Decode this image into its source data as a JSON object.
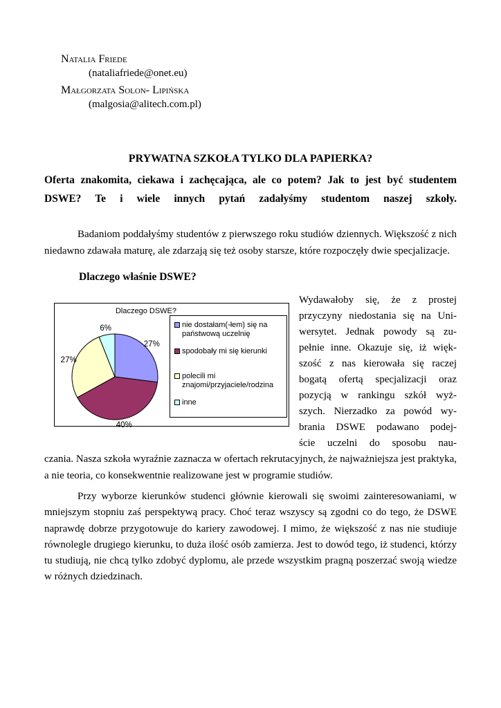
{
  "page": {
    "authors": [
      {
        "name": "Natalia Friede",
        "email": "(nataliafriede@onet.eu)"
      },
      {
        "name": "Małgorzata Solon- Lipińska",
        "email": "(malgosia@alitech.com.pl)"
      }
    ],
    "title": "PRYWATNA SZKOŁA TYLKO DLA PAPIERKA?",
    "lead": "Oferta znakomita, ciekawa i zachęcająca, ale co potem? Jak to jest być studentem DSWE? Te i wiele innych pytań zadałyśmy studentom naszej szkoły.",
    "paragraph_intro": "Badaniom poddałyśmy studentów z pierwszego roku studiów dziennych. Większość z nich niedawno zdawała maturę, ale zdarzają się też osoby starsze, które rozpoczęły dwie specjalizacje.",
    "section_heading": "Dlaczego właśnie DSWE?",
    "right_column_lines": [
      "Wydawałoby się, że z prostej",
      "przyczyny niedostania się na Uni-",
      "wersytet. Jednak powody są zu-",
      "pełnie inne. Okazuje się, iż więk-",
      "szość z nas kierowała się raczej",
      "bogatą ofertą specjalizacji oraz",
      "pozycją w rankingu szkół wyż-",
      "szych. Nierzadko za powód wy-",
      "brania DSWE podawano podej-",
      "ście uczelni do sposobu nau-"
    ],
    "paragraph_continuation": "czania. Nasza szkoła wyraźnie zaznacza w ofertach rekrutacyjnych, że najważniejsza jest praktyka, a nie teoria, co konsekwentnie realizowane jest w programie studiów.",
    "paragraph_closing": "Przy wyborze kierunków studenci głównie kierowali się swoimi zainteresowaniami, w mniejszym stopniu zaś perspektywą pracy. Choć teraz wszyscy są zgodni co do tego, że DSWE naprawdę dobrze przygotowuje do kariery zawodowej. I mimo, że większość z nas nie studiuje równolegle drugiego kierunku, to duża ilość osób zamierza. Jest to dowód tego, iż studenci, którzy tu studiują, nie chcą tylko zdobyć dyplomu, ale przede wszystkim pragną poszerzać swoją wiedze w różnych dziedzinach."
  },
  "chart_data": {
    "type": "pie",
    "title": "Dlaczego DSWE?",
    "categories": [
      "nie dostałam(-łem) się na państwową uczelnię",
      "spodobały mi się kierunki",
      "polecili mi znajomi/przyjaciele/rodzina",
      "inne"
    ],
    "values": [
      27,
      40,
      27,
      6
    ],
    "unit": "%",
    "value_labels": [
      "27%",
      "40%",
      "27%",
      "6%"
    ],
    "colors": [
      "#9999ff",
      "#993366",
      "#ffffcc",
      "#ccffff"
    ],
    "outline_color": "#000000",
    "legend_position": "right",
    "start_angle_deg": 0,
    "direction": "clockwise"
  }
}
